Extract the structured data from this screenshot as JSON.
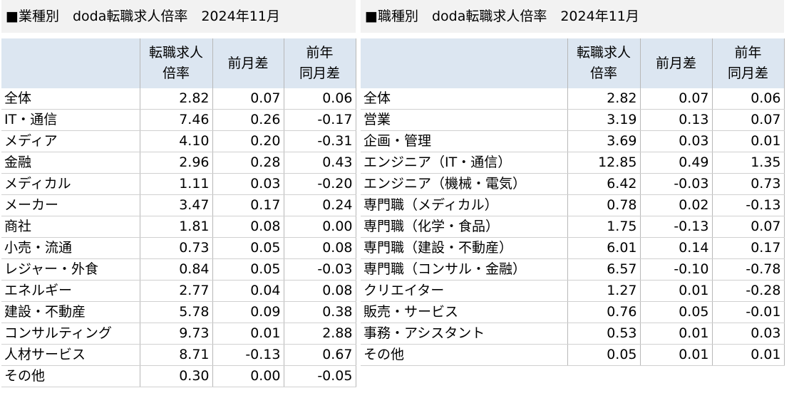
{
  "left": {
    "title": "■業種別　doda転職求人倍率　2024年11月",
    "headers": {
      "name": "",
      "ratio_1": "転職求人",
      "ratio_2": "倍率",
      "mom": "前月差",
      "yoy_1": "前年",
      "yoy_2": "同月差"
    },
    "rows": [
      {
        "name": "全体",
        "ratio": "2.82",
        "mom": "0.07",
        "yoy": "0.06"
      },
      {
        "name": "IT・通信",
        "ratio": "7.46",
        "mom": "0.26",
        "yoy": "-0.17"
      },
      {
        "name": "メディア",
        "ratio": "4.10",
        "mom": "0.20",
        "yoy": "-0.31"
      },
      {
        "name": "金融",
        "ratio": "2.96",
        "mom": "0.28",
        "yoy": "0.43"
      },
      {
        "name": "メディカル",
        "ratio": "1.11",
        "mom": "0.03",
        "yoy": "-0.20"
      },
      {
        "name": "メーカー",
        "ratio": "3.47",
        "mom": "0.17",
        "yoy": "0.24"
      },
      {
        "name": "商社",
        "ratio": "1.81",
        "mom": "0.08",
        "yoy": "0.00"
      },
      {
        "name": "小売・流通",
        "ratio": "0.73",
        "mom": "0.05",
        "yoy": "0.08"
      },
      {
        "name": "レジャー・外食",
        "ratio": "0.84",
        "mom": "0.05",
        "yoy": "-0.03"
      },
      {
        "name": "エネルギー",
        "ratio": "2.77",
        "mom": "0.04",
        "yoy": "0.08"
      },
      {
        "name": "建設・不動産",
        "ratio": "5.78",
        "mom": "0.09",
        "yoy": "0.38"
      },
      {
        "name": "コンサルティング",
        "ratio": "9.73",
        "mom": "0.01",
        "yoy": "2.88"
      },
      {
        "name": "人材サービス",
        "ratio": "8.71",
        "mom": "-0.13",
        "yoy": "0.67"
      },
      {
        "name": "その他",
        "ratio": "0.30",
        "mom": "0.00",
        "yoy": "-0.05"
      }
    ]
  },
  "right": {
    "title": "■職種別　doda転職求人倍率　2024年11月",
    "headers": {
      "name": "",
      "ratio_1": "転職求人",
      "ratio_2": "倍率",
      "mom": "前月差",
      "yoy_1": "前年",
      "yoy_2": "同月差"
    },
    "rows": [
      {
        "name": "全体",
        "ratio": "2.82",
        "mom": "0.07",
        "yoy": "0.06"
      },
      {
        "name": "営業",
        "ratio": "3.19",
        "mom": "0.13",
        "yoy": "0.07"
      },
      {
        "name": "企画・管理",
        "ratio": "3.69",
        "mom": "0.03",
        "yoy": "0.01"
      },
      {
        "name": "エンジニア（IT・通信）",
        "ratio": "12.85",
        "mom": "0.49",
        "yoy": "1.35"
      },
      {
        "name": "エンジニア（機械・電気）",
        "ratio": "6.42",
        "mom": "-0.03",
        "yoy": "0.73"
      },
      {
        "name": "専門職（メディカル）",
        "ratio": "0.78",
        "mom": "0.02",
        "yoy": "-0.13"
      },
      {
        "name": "専門職（化学・食品）",
        "ratio": "1.75",
        "mom": "-0.13",
        "yoy": "0.07"
      },
      {
        "name": "専門職（建設・不動産）",
        "ratio": "6.01",
        "mom": "0.14",
        "yoy": "0.17"
      },
      {
        "name": "専門職（コンサル・金融）",
        "ratio": "6.57",
        "mom": "-0.10",
        "yoy": "-0.78"
      },
      {
        "name": "クリエイター",
        "ratio": "1.27",
        "mom": "0.01",
        "yoy": "-0.28"
      },
      {
        "name": "販売・サービス",
        "ratio": "0.76",
        "mom": "0.05",
        "yoy": "-0.01"
      },
      {
        "name": "事務・アシスタント",
        "ratio": "0.53",
        "mom": "0.01",
        "yoy": "0.03"
      },
      {
        "name": "その他",
        "ratio": "0.05",
        "mom": "0.01",
        "yoy": "0.01"
      }
    ]
  }
}
